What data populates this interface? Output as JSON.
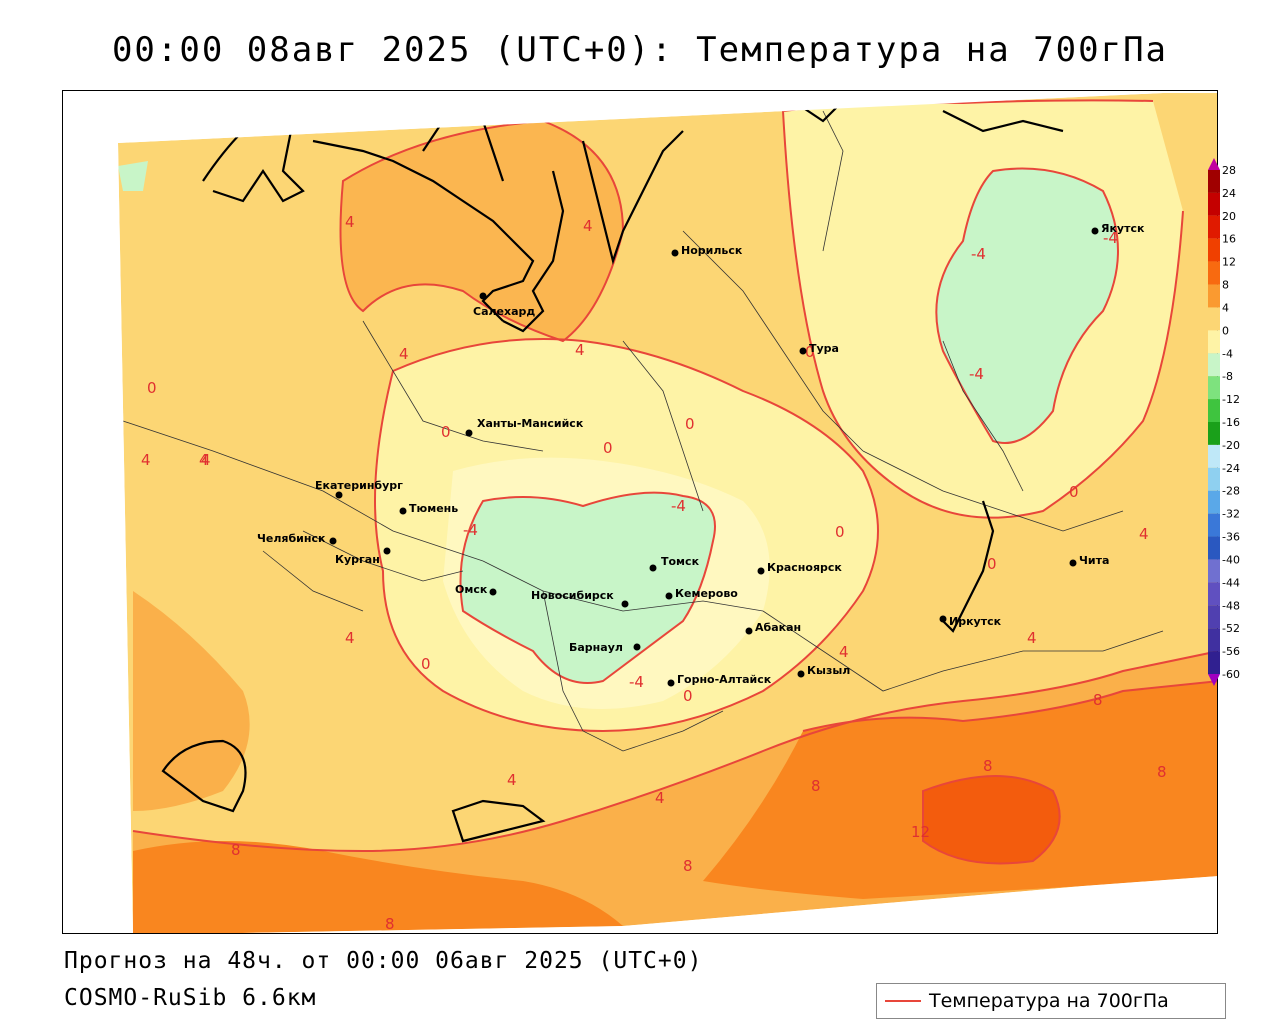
{
  "title": "00:00 08авг 2025 (UTC+0): Температура на 700гПа",
  "forecast_line": "Прогноз на 48ч. от 00:00 06авг 2025 (UTC+0)",
  "model_line": "COSMO-RuSib 6.6км",
  "legend": {
    "label": "Температура на 700гПа",
    "color": "#e8463a"
  },
  "colors": {
    "neg8": "#b6f0bf",
    "neg4": "#c8f5c8",
    "zero": "#fff8c0",
    "pos0": "#fef3a6",
    "pos4": "#fcd674",
    "pos8": "#fab04a",
    "pos12": "#f9861f",
    "pos16": "#f35c0d",
    "isoline": "#e8463a",
    "coast": "#000000",
    "border": "#222222"
  },
  "colorbar": {
    "labels": [
      "28",
      "24",
      "20",
      "16",
      "12",
      "8",
      "4",
      "0",
      "-4",
      "-8",
      "-12",
      "-16",
      "-20",
      "-24",
      "-28",
      "-32",
      "-36",
      "-40",
      "-44",
      "-48",
      "-52",
      "-56",
      "-60"
    ],
    "colors": [
      "#a00000",
      "#c40000",
      "#e01a00",
      "#f04000",
      "#f86a10",
      "#fa9a30",
      "#fcd674",
      "#fef3a6",
      "#c8f5c8",
      "#7ee27e",
      "#3fc43f",
      "#1aa01a",
      "#bfe8f8",
      "#8fd0f0",
      "#5aa8e8",
      "#3a78d8",
      "#2a58c0",
      "#7070d0",
      "#6050c0",
      "#5040b0",
      "#4030a0",
      "#302090"
    ]
  },
  "cities": [
    {
      "name": "Норильск"
    },
    {
      "name": "Салехард"
    },
    {
      "name": "Тура"
    },
    {
      "name": "Якутск"
    },
    {
      "name": "Ханты-Мансийск"
    },
    {
      "name": "Екатеринбург"
    },
    {
      "name": "Тюмень"
    },
    {
      "name": "Челябинск"
    },
    {
      "name": "Курган"
    },
    {
      "name": "Омск"
    },
    {
      "name": "Новосибирск"
    },
    {
      "name": "Томск"
    },
    {
      "name": "Кемерово"
    },
    {
      "name": "Красноярск"
    },
    {
      "name": "Абакан"
    },
    {
      "name": "Барнаул"
    },
    {
      "name": "Горно-Алтайск"
    },
    {
      "name": "Кызыл"
    },
    {
      "name": "Иркутск"
    },
    {
      "name": "Чита"
    }
  ],
  "isoline_labels": [
    "-4",
    "0",
    "4",
    "8",
    "12"
  ]
}
